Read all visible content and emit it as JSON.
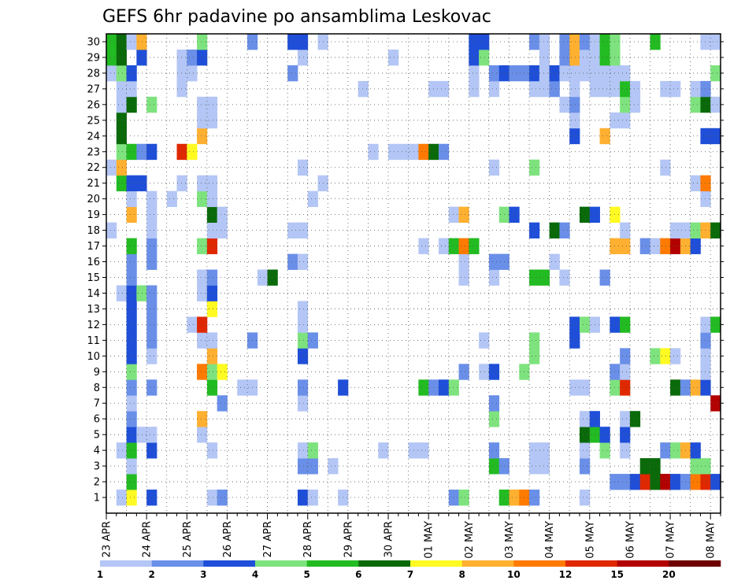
{
  "chart_data": {
    "type": "heatmap",
    "title": "GEFS 6hr padavine po ansamblima Leskovac",
    "xlabel": "",
    "ylabel": "",
    "x_tick_labels": [
      "23 APR",
      "24 APR",
      "25 APR",
      "26 APR",
      "27 APR",
      "28 APR",
      "29 APR",
      "30 APR",
      "01 MAY",
      "02 MAY",
      "03 MAY",
      "04 MAY",
      "05 MAY",
      "06 MAY",
      "07 MAY",
      "08 MAY"
    ],
    "n_steps": 61,
    "steps_per_day": 4,
    "y_tick_labels": [
      "1",
      "2",
      "3",
      "4",
      "5",
      "6",
      "7",
      "8",
      "9",
      "10",
      "11",
      "12",
      "13",
      "14",
      "15",
      "16",
      "17",
      "18",
      "19",
      "20",
      "21",
      "22",
      "23",
      "24",
      "25",
      "26",
      "27",
      "28",
      "29",
      "30"
    ],
    "ylim": [
      1,
      30
    ],
    "grid": true,
    "colorbar": {
      "ticks": [
        "1",
        "2",
        "3",
        "4",
        "5",
        "6",
        "7",
        "8",
        "10",
        "12",
        "15",
        "20"
      ],
      "colors": [
        "#b4c6f5",
        "#6a8fe8",
        "#1f4fd8",
        "#7ee37e",
        "#22bb22",
        "#0a6a0a",
        "#fffa22",
        "#ffb030",
        "#ff7a00",
        "#e02800",
        "#b30000",
        "#6e0000"
      ]
    },
    "cells": [
      [
        1,
        1,
        1
      ],
      [
        1,
        2,
        7
      ],
      [
        1,
        4,
        3
      ],
      [
        1,
        10,
        1
      ],
      [
        1,
        11,
        2
      ],
      [
        1,
        19,
        3
      ],
      [
        1,
        20,
        1
      ],
      [
        1,
        23,
        1
      ],
      [
        1,
        34,
        2
      ],
      [
        1,
        35,
        4
      ],
      [
        1,
        39,
        5
      ],
      [
        1,
        40,
        8
      ],
      [
        1,
        41,
        9
      ],
      [
        1,
        42,
        2
      ],
      [
        1,
        47,
        1
      ],
      [
        2,
        2,
        5
      ],
      [
        2,
        50,
        2
      ],
      [
        2,
        51,
        2
      ],
      [
        2,
        52,
        3
      ],
      [
        2,
        53,
        10
      ],
      [
        2,
        54,
        6
      ],
      [
        2,
        55,
        11
      ],
      [
        2,
        56,
        3
      ],
      [
        2,
        57,
        2
      ],
      [
        2,
        58,
        9
      ],
      [
        2,
        59,
        10
      ],
      [
        2,
        60,
        3
      ],
      [
        3,
        2,
        1
      ],
      [
        3,
        19,
        2
      ],
      [
        3,
        20,
        2
      ],
      [
        3,
        22,
        1
      ],
      [
        3,
        38,
        5
      ],
      [
        3,
        39,
        2
      ],
      [
        3,
        42,
        1
      ],
      [
        3,
        43,
        1
      ],
      [
        3,
        47,
        2
      ],
      [
        3,
        53,
        6
      ],
      [
        3,
        54,
        6
      ],
      [
        3,
        58,
        4
      ],
      [
        3,
        59,
        4
      ],
      [
        4,
        1,
        1
      ],
      [
        4,
        2,
        5
      ],
      [
        4,
        4,
        3
      ],
      [
        4,
        10,
        1
      ],
      [
        4,
        19,
        1
      ],
      [
        4,
        20,
        4
      ],
      [
        4,
        27,
        1
      ],
      [
        4,
        30,
        1
      ],
      [
        4,
        31,
        1
      ],
      [
        4,
        38,
        2
      ],
      [
        4,
        42,
        1
      ],
      [
        4,
        43,
        1
      ],
      [
        4,
        47,
        1
      ],
      [
        4,
        49,
        4
      ],
      [
        4,
        51,
        1
      ],
      [
        4,
        55,
        2
      ],
      [
        4,
        56,
        4
      ],
      [
        4,
        57,
        8
      ],
      [
        4,
        58,
        3
      ],
      [
        5,
        2,
        3
      ],
      [
        5,
        3,
        1
      ],
      [
        5,
        4,
        1
      ],
      [
        5,
        9,
        1
      ],
      [
        5,
        47,
        6
      ],
      [
        5,
        48,
        5
      ],
      [
        5,
        49,
        3
      ],
      [
        5,
        51,
        3
      ],
      [
        6,
        2,
        2
      ],
      [
        6,
        9,
        8
      ],
      [
        6,
        38,
        4
      ],
      [
        6,
        47,
        1
      ],
      [
        6,
        48,
        3
      ],
      [
        6,
        51,
        1
      ],
      [
        6,
        52,
        6
      ],
      [
        7,
        2,
        1
      ],
      [
        7,
        11,
        2
      ],
      [
        7,
        19,
        1
      ],
      [
        7,
        38,
        2
      ],
      [
        7,
        60,
        11
      ],
      [
        8,
        2,
        2
      ],
      [
        8,
        4,
        2
      ],
      [
        8,
        10,
        5
      ],
      [
        8,
        13,
        1
      ],
      [
        8,
        14,
        1
      ],
      [
        8,
        19,
        2
      ],
      [
        8,
        23,
        3
      ],
      [
        8,
        31,
        5
      ],
      [
        8,
        32,
        2
      ],
      [
        8,
        33,
        3
      ],
      [
        8,
        34,
        4
      ],
      [
        8,
        46,
        1
      ],
      [
        8,
        47,
        1
      ],
      [
        8,
        50,
        4
      ],
      [
        8,
        51,
        10
      ],
      [
        8,
        56,
        6
      ],
      [
        8,
        57,
        2
      ],
      [
        8,
        58,
        8
      ],
      [
        8,
        59,
        3
      ],
      [
        9,
        2,
        4
      ],
      [
        9,
        9,
        9
      ],
      [
        9,
        10,
        4
      ],
      [
        9,
        11,
        7
      ],
      [
        9,
        35,
        2
      ],
      [
        9,
        37,
        1
      ],
      [
        9,
        38,
        3
      ],
      [
        9,
        41,
        4
      ],
      [
        9,
        50,
        2
      ],
      [
        9,
        51,
        1
      ],
      [
        9,
        59,
        1
      ],
      [
        10,
        2,
        3
      ],
      [
        10,
        4,
        1
      ],
      [
        10,
        10,
        8
      ],
      [
        10,
        19,
        3
      ],
      [
        10,
        42,
        4
      ],
      [
        10,
        51,
        2
      ],
      [
        10,
        54,
        4
      ],
      [
        10,
        55,
        7
      ],
      [
        10,
        56,
        1
      ],
      [
        10,
        59,
        1
      ],
      [
        11,
        2,
        3
      ],
      [
        11,
        4,
        2
      ],
      [
        11,
        9,
        1
      ],
      [
        11,
        10,
        1
      ],
      [
        11,
        14,
        2
      ],
      [
        11,
        19,
        4
      ],
      [
        11,
        20,
        2
      ],
      [
        11,
        37,
        1
      ],
      [
        11,
        42,
        4
      ],
      [
        11,
        46,
        3
      ],
      [
        11,
        59,
        2
      ],
      [
        12,
        2,
        3
      ],
      [
        12,
        4,
        2
      ],
      [
        12,
        8,
        1
      ],
      [
        12,
        9,
        10
      ],
      [
        12,
        19,
        1
      ],
      [
        12,
        46,
        3
      ],
      [
        12,
        47,
        4
      ],
      [
        12,
        48,
        1
      ],
      [
        12,
        50,
        3
      ],
      [
        12,
        51,
        5
      ],
      [
        12,
        59,
        1
      ],
      [
        12,
        60,
        5
      ],
      [
        13,
        2,
        3
      ],
      [
        13,
        4,
        2
      ],
      [
        13,
        10,
        7
      ],
      [
        13,
        19,
        1
      ],
      [
        14,
        1,
        1
      ],
      [
        14,
        2,
        3
      ],
      [
        14,
        3,
        4
      ],
      [
        14,
        4,
        2
      ],
      [
        14,
        9,
        1
      ],
      [
        14,
        10,
        3
      ],
      [
        15,
        2,
        2
      ],
      [
        15,
        9,
        1
      ],
      [
        15,
        10,
        2
      ],
      [
        15,
        15,
        1
      ],
      [
        15,
        16,
        6
      ],
      [
        15,
        35,
        1
      ],
      [
        15,
        38,
        1
      ],
      [
        15,
        42,
        5
      ],
      [
        15,
        43,
        5
      ],
      [
        15,
        45,
        1
      ],
      [
        15,
        49,
        2
      ],
      [
        16,
        2,
        2
      ],
      [
        16,
        4,
        2
      ],
      [
        16,
        18,
        2
      ],
      [
        16,
        19,
        1
      ],
      [
        16,
        35,
        1
      ],
      [
        16,
        38,
        2
      ],
      [
        16,
        39,
        2
      ],
      [
        16,
        44,
        1
      ],
      [
        17,
        2,
        5
      ],
      [
        17,
        4,
        2
      ],
      [
        17,
        9,
        4
      ],
      [
        17,
        10,
        10
      ],
      [
        17,
        31,
        1
      ],
      [
        17,
        33,
        1
      ],
      [
        17,
        34,
        5
      ],
      [
        17,
        35,
        9
      ],
      [
        17,
        36,
        5
      ],
      [
        17,
        50,
        8
      ],
      [
        17,
        51,
        8
      ],
      [
        17,
        53,
        2
      ],
      [
        17,
        54,
        1
      ],
      [
        17,
        55,
        9
      ],
      [
        17,
        56,
        11
      ],
      [
        17,
        57,
        8
      ],
      [
        17,
        58,
        3
      ],
      [
        18,
        0,
        1
      ],
      [
        18,
        4,
        1
      ],
      [
        18,
        10,
        1
      ],
      [
        18,
        11,
        1
      ],
      [
        18,
        18,
        1
      ],
      [
        18,
        19,
        1
      ],
      [
        18,
        42,
        3
      ],
      [
        18,
        44,
        6
      ],
      [
        18,
        45,
        2
      ],
      [
        18,
        51,
        1
      ],
      [
        18,
        56,
        1
      ],
      [
        18,
        57,
        1
      ],
      [
        18,
        58,
        4
      ],
      [
        18,
        59,
        8
      ],
      [
        18,
        60,
        6
      ],
      [
        19,
        2,
        8
      ],
      [
        19,
        4,
        1
      ],
      [
        19,
        10,
        6
      ],
      [
        19,
        11,
        1
      ],
      [
        19,
        34,
        1
      ],
      [
        19,
        35,
        8
      ],
      [
        19,
        39,
        4
      ],
      [
        19,
        40,
        3
      ],
      [
        19,
        47,
        6
      ],
      [
        19,
        48,
        3
      ],
      [
        19,
        50,
        7
      ],
      [
        20,
        2,
        1
      ],
      [
        20,
        4,
        1
      ],
      [
        20,
        6,
        1
      ],
      [
        20,
        9,
        4
      ],
      [
        20,
        10,
        1
      ],
      [
        20,
        20,
        1
      ],
      [
        20,
        59,
        1
      ],
      [
        21,
        1,
        5
      ],
      [
        21,
        2,
        3
      ],
      [
        21,
        3,
        3
      ],
      [
        21,
        7,
        1
      ],
      [
        21,
        9,
        1
      ],
      [
        21,
        10,
        1
      ],
      [
        21,
        21,
        1
      ],
      [
        21,
        58,
        1
      ],
      [
        21,
        59,
        9
      ],
      [
        22,
        0,
        1
      ],
      [
        22,
        1,
        8
      ],
      [
        22,
        19,
        1
      ],
      [
        22,
        38,
        1
      ],
      [
        22,
        42,
        4
      ],
      [
        22,
        55,
        1
      ],
      [
        23,
        1,
        4
      ],
      [
        23,
        2,
        5
      ],
      [
        23,
        3,
        2
      ],
      [
        23,
        4,
        3
      ],
      [
        23,
        7,
        10
      ],
      [
        23,
        8,
        7
      ],
      [
        23,
        26,
        1
      ],
      [
        23,
        28,
        1
      ],
      [
        23,
        29,
        1
      ],
      [
        23,
        30,
        1
      ],
      [
        23,
        31,
        9
      ],
      [
        23,
        32,
        6
      ],
      [
        23,
        33,
        2
      ],
      [
        24,
        1,
        6
      ],
      [
        24,
        9,
        8
      ],
      [
        24,
        46,
        3
      ],
      [
        24,
        49,
        8
      ],
      [
        24,
        59,
        3
      ],
      [
        24,
        60,
        3
      ],
      [
        25,
        1,
        6
      ],
      [
        25,
        9,
        1
      ],
      [
        25,
        10,
        1
      ],
      [
        25,
        46,
        1
      ],
      [
        25,
        50,
        1
      ],
      [
        25,
        51,
        1
      ],
      [
        26,
        1,
        1
      ],
      [
        26,
        2,
        6
      ],
      [
        26,
        4,
        4
      ],
      [
        26,
        9,
        1
      ],
      [
        26,
        10,
        1
      ],
      [
        26,
        45,
        1
      ],
      [
        26,
        46,
        2
      ],
      [
        26,
        51,
        4
      ],
      [
        26,
        52,
        1
      ],
      [
        26,
        58,
        4
      ],
      [
        26,
        59,
        6
      ],
      [
        26,
        60,
        1
      ],
      [
        27,
        1,
        1
      ],
      [
        27,
        2,
        1
      ],
      [
        27,
        7,
        1
      ],
      [
        27,
        25,
        1
      ],
      [
        27,
        32,
        1
      ],
      [
        27,
        33,
        1
      ],
      [
        27,
        36,
        1
      ],
      [
        27,
        38,
        1
      ],
      [
        27,
        42,
        1
      ],
      [
        27,
        43,
        1
      ],
      [
        27,
        44,
        2
      ],
      [
        27,
        46,
        1
      ],
      [
        27,
        48,
        1
      ],
      [
        27,
        49,
        1
      ],
      [
        27,
        50,
        1
      ],
      [
        27,
        51,
        5
      ],
      [
        27,
        52,
        1
      ],
      [
        27,
        55,
        1
      ],
      [
        27,
        56,
        1
      ],
      [
        27,
        58,
        1
      ],
      [
        27,
        59,
        2
      ],
      [
        28,
        0,
        1
      ],
      [
        28,
        1,
        4
      ],
      [
        28,
        2,
        3
      ],
      [
        28,
        7,
        1
      ],
      [
        28,
        8,
        1
      ],
      [
        28,
        18,
        2
      ],
      [
        28,
        36,
        1
      ],
      [
        28,
        38,
        2
      ],
      [
        28,
        39,
        3
      ],
      [
        28,
        40,
        2
      ],
      [
        28,
        41,
        2
      ],
      [
        28,
        42,
        3
      ],
      [
        28,
        43,
        1
      ],
      [
        28,
        44,
        3
      ],
      [
        28,
        45,
        1
      ],
      [
        28,
        46,
        1
      ],
      [
        28,
        47,
        1
      ],
      [
        28,
        48,
        1
      ],
      [
        28,
        49,
        1
      ],
      [
        28,
        50,
        1
      ],
      [
        28,
        51,
        1
      ],
      [
        28,
        60,
        4
      ],
      [
        29,
        0,
        5
      ],
      [
        29,
        1,
        6
      ],
      [
        29,
        3,
        3
      ],
      [
        29,
        7,
        1
      ],
      [
        29,
        8,
        2
      ],
      [
        29,
        9,
        3
      ],
      [
        29,
        19,
        1
      ],
      [
        29,
        28,
        1
      ],
      [
        29,
        36,
        3
      ],
      [
        29,
        37,
        4
      ],
      [
        29,
        43,
        1
      ],
      [
        29,
        45,
        2
      ],
      [
        29,
        46,
        8
      ],
      [
        29,
        47,
        1
      ],
      [
        29,
        48,
        1
      ],
      [
        29,
        49,
        5
      ],
      [
        29,
        50,
        4
      ],
      [
        30,
        0,
        5
      ],
      [
        30,
        1,
        6
      ],
      [
        30,
        2,
        1
      ],
      [
        30,
        3,
        8
      ],
      [
        30,
        9,
        4
      ],
      [
        30,
        14,
        2
      ],
      [
        30,
        18,
        3
      ],
      [
        30,
        19,
        3
      ],
      [
        30,
        21,
        1
      ],
      [
        30,
        36,
        3
      ],
      [
        30,
        37,
        3
      ],
      [
        30,
        42,
        2
      ],
      [
        30,
        43,
        1
      ],
      [
        30,
        45,
        2
      ],
      [
        30,
        46,
        8
      ],
      [
        30,
        47,
        2
      ],
      [
        30,
        48,
        1
      ],
      [
        30,
        49,
        5
      ],
      [
        30,
        50,
        4
      ],
      [
        30,
        54,
        5
      ],
      [
        30,
        59,
        1
      ],
      [
        30,
        60,
        1
      ]
    ]
  }
}
